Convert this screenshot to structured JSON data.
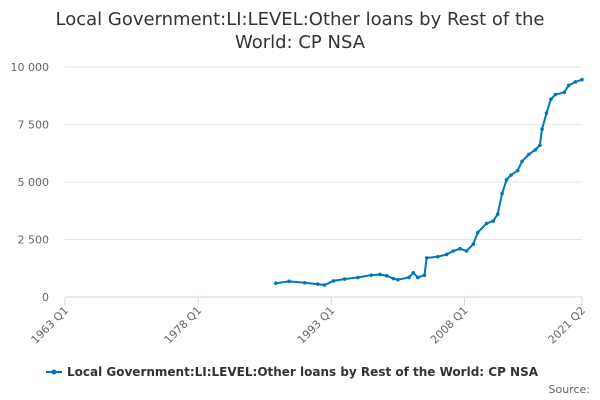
{
  "chart_data": {
    "type": "line",
    "title": "Local Government:LI:LEVEL:Other loans by Rest of the World: CP NSA",
    "x": [
      1986.75,
      1988.25,
      1990,
      1991.5,
      1992.25,
      1993.25,
      1994.5,
      1996,
      1997.5,
      1998.5,
      1999.25,
      2000,
      2000.5,
      2001.75,
      2002.25,
      2002.75,
      2003.5,
      2003.75,
      2005,
      2006,
      2006.75,
      2007.5,
      2008.25,
      2009,
      2009.5,
      2010.5,
      2011.25,
      2011.75,
      2012.25,
      2012.75,
      2013.25,
      2014,
      2014.5,
      2015.25,
      2016,
      2016.5,
      2016.75,
      2017.25,
      2017.75,
      2018.25,
      2019.25,
      2019.75,
      2020.5,
      2021.25
    ],
    "series": [
      {
        "name": "Local Government:LI:LEVEL:Other loans by Rest of the World: CP NSA",
        "color": "#0077b6",
        "values": [
          600,
          680,
          620,
          560,
          520,
          700,
          780,
          850,
          950,
          980,
          920,
          800,
          750,
          850,
          1050,
          850,
          950,
          1700,
          1750,
          1850,
          2000,
          2100,
          2000,
          2300,
          2800,
          3200,
          3300,
          3600,
          4500,
          5100,
          5300,
          5500,
          5900,
          6200,
          6400,
          6600,
          7300,
          8000,
          8600,
          8800,
          8900,
          9200,
          9350,
          9450
        ]
      }
    ],
    "xlim": [
      1963,
      2021.25
    ],
    "xticks": [
      {
        "value": 1963,
        "label": "1963 Q1"
      },
      {
        "value": 1978,
        "label": "1978 Q1"
      },
      {
        "value": 1993,
        "label": "1993 Q1"
      },
      {
        "value": 2008,
        "label": "2008 Q1"
      },
      {
        "value": 2021.25,
        "label": "2021 Q2"
      }
    ],
    "ylim": [
      0,
      10000
    ],
    "yticks": [
      0,
      {
        "value": 2500,
        "label": "2 500"
      },
      {
        "value": 5000,
        "label": "5 000"
      },
      {
        "value": 7500,
        "label": "7 500"
      },
      {
        "value": 10000,
        "label": "10 000"
      }
    ],
    "grid": true,
    "source": "Source:"
  }
}
